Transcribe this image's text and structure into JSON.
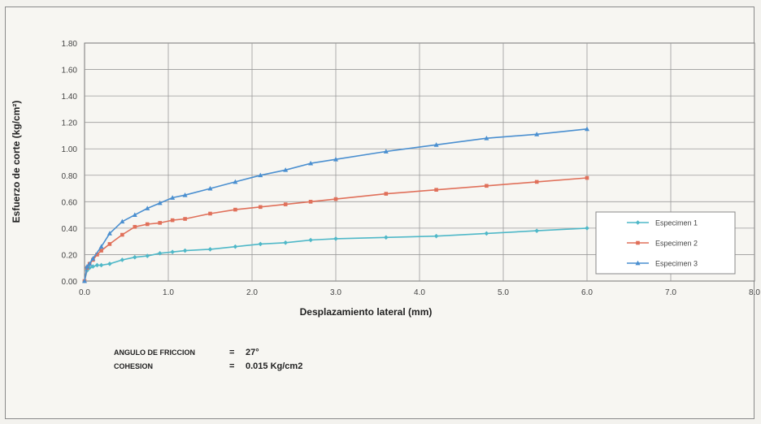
{
  "chart_data": {
    "type": "line",
    "title": "",
    "xlabel": "Desplazamiento lateral (mm)",
    "ylabel": "Esfuerzo de corte (kg/cm²)",
    "xlim": [
      0,
      8
    ],
    "ylim": [
      0,
      1.8
    ],
    "x_ticks": [
      "0.0",
      "1.0",
      "2.0",
      "3.0",
      "4.0",
      "5.0",
      "6.0",
      "7.0",
      "8.0"
    ],
    "y_ticks": [
      "0.00",
      "0.20",
      "0.40",
      "0.60",
      "0.80",
      "1.00",
      "1.20",
      "1.40",
      "1.60",
      "1.80"
    ],
    "grid": true,
    "legend_position": "right",
    "series": [
      {
        "name": "Especimen 1",
        "color": "#4fb8c8",
        "marker": "diamond",
        "points": [
          [
            0,
            0
          ],
          [
            0.03,
            0.08
          ],
          [
            0.06,
            0.1
          ],
          [
            0.1,
            0.11
          ],
          [
            0.15,
            0.12
          ],
          [
            0.2,
            0.12
          ],
          [
            0.3,
            0.13
          ],
          [
            0.45,
            0.16
          ],
          [
            0.6,
            0.18
          ],
          [
            0.75,
            0.19
          ],
          [
            0.9,
            0.21
          ],
          [
            1.05,
            0.22
          ],
          [
            1.2,
            0.23
          ],
          [
            1.5,
            0.24
          ],
          [
            1.8,
            0.26
          ],
          [
            2.1,
            0.28
          ],
          [
            2.4,
            0.29
          ],
          [
            2.7,
            0.31
          ],
          [
            3.0,
            0.32
          ],
          [
            3.6,
            0.33
          ],
          [
            4.2,
            0.34
          ],
          [
            4.8,
            0.36
          ],
          [
            5.4,
            0.38
          ],
          [
            6.0,
            0.4
          ]
        ]
      },
      {
        "name": "Especimen 2",
        "color": "#e0705a",
        "marker": "square",
        "points": [
          [
            0,
            0
          ],
          [
            0.03,
            0.1
          ],
          [
            0.06,
            0.13
          ],
          [
            0.1,
            0.16
          ],
          [
            0.15,
            0.2
          ],
          [
            0.2,
            0.23
          ],
          [
            0.3,
            0.28
          ],
          [
            0.45,
            0.35
          ],
          [
            0.6,
            0.41
          ],
          [
            0.75,
            0.43
          ],
          [
            0.9,
            0.44
          ],
          [
            1.05,
            0.46
          ],
          [
            1.2,
            0.47
          ],
          [
            1.5,
            0.51
          ],
          [
            1.8,
            0.54
          ],
          [
            2.1,
            0.56
          ],
          [
            2.4,
            0.58
          ],
          [
            2.7,
            0.6
          ],
          [
            3.0,
            0.62
          ],
          [
            3.6,
            0.66
          ],
          [
            4.2,
            0.69
          ],
          [
            4.8,
            0.72
          ],
          [
            5.4,
            0.75
          ],
          [
            6.0,
            0.78
          ]
        ]
      },
      {
        "name": "Especimen 3",
        "color": "#4a8fd0",
        "marker": "triangle",
        "points": [
          [
            0,
            0
          ],
          [
            0.03,
            0.11
          ],
          [
            0.06,
            0.13
          ],
          [
            0.1,
            0.17
          ],
          [
            0.2,
            0.26
          ],
          [
            0.3,
            0.36
          ],
          [
            0.45,
            0.45
          ],
          [
            0.6,
            0.5
          ],
          [
            0.75,
            0.55
          ],
          [
            0.9,
            0.59
          ],
          [
            1.05,
            0.63
          ],
          [
            1.2,
            0.65
          ],
          [
            1.5,
            0.7
          ],
          [
            1.8,
            0.75
          ],
          [
            2.1,
            0.8
          ],
          [
            2.4,
            0.84
          ],
          [
            2.7,
            0.89
          ],
          [
            3.0,
            0.92
          ],
          [
            3.6,
            0.98
          ],
          [
            4.2,
            1.03
          ],
          [
            4.8,
            1.08
          ],
          [
            5.4,
            1.11
          ],
          [
            6.0,
            1.15
          ]
        ]
      }
    ]
  },
  "notes": {
    "friction_label": "ANGULO DE FRICCION",
    "friction_eq": "=",
    "friction_value": "27°",
    "cohesion_label": "COHESION",
    "cohesion_eq": "=",
    "cohesion_value": "0.015 Kg/cm2"
  }
}
